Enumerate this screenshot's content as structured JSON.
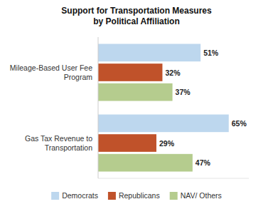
{
  "chart_data": {
    "type": "bar",
    "orientation": "horizontal",
    "title": "Support for Transportation Measures\nby Political Affiliation",
    "categories": [
      "Mileage-Based User Fee\nProgram",
      "Gas Tax Revenue to\nTransportation"
    ],
    "series": [
      {
        "name": "Democrats",
        "color": "#bdd7ee",
        "values": [
          51,
          65
        ],
        "value_labels": [
          "51%",
          "65%"
        ]
      },
      {
        "name": "Republicans",
        "color": "#c0522a",
        "values": [
          32,
          29
        ],
        "value_labels": [
          "32%",
          "29%"
        ]
      },
      {
        "name": "NAV/ Others",
        "color": "#b5cc8e",
        "values": [
          37,
          47
        ],
        "value_labels": [
          "37%",
          "47%"
        ]
      }
    ],
    "xlim": [
      0,
      75
    ],
    "data_labels": true,
    "tick_labels": "y",
    "grid": false,
    "legend": "bottom"
  }
}
